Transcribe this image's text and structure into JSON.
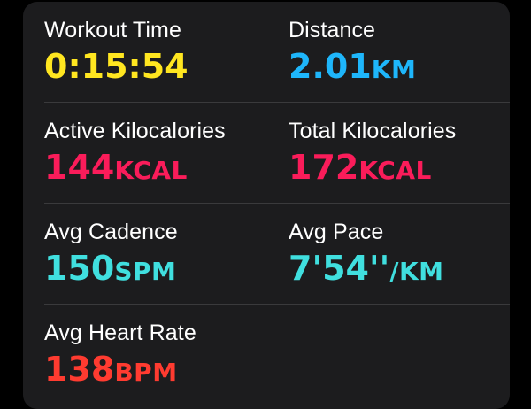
{
  "colors": {
    "workout_time": "#ffe620",
    "distance": "#1eb6fb",
    "calories": "#fa1c5a",
    "cadence": "#40dfdf",
    "pace": "#40dfdf",
    "heart_rate": "#ff3b30"
  },
  "stats": {
    "workout_time": {
      "label": "Workout Time",
      "value": "0:15:54",
      "unit": ""
    },
    "distance": {
      "label": "Distance",
      "value": "2.01",
      "unit": "KM"
    },
    "active_kcal": {
      "label": "Active Kilocalories",
      "value": "144",
      "unit": "KCAL"
    },
    "total_kcal": {
      "label": "Total Kilocalories",
      "value": "172",
      "unit": "KCAL"
    },
    "avg_cadence": {
      "label": "Avg Cadence",
      "value": "150",
      "unit": "SPM"
    },
    "avg_pace": {
      "label": "Avg Pace",
      "value": "7'54''",
      "unit": "/KM"
    },
    "avg_heart_rate": {
      "label": "Avg Heart Rate",
      "value": "138",
      "unit": "BPM"
    }
  }
}
